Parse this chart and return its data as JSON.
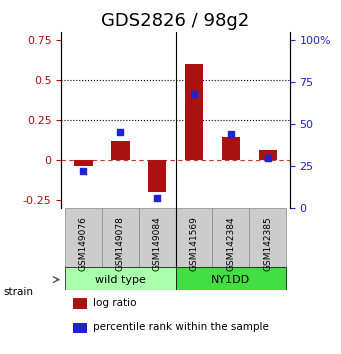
{
  "title": "GDS2826 / 98g2",
  "samples": [
    "GSM149076",
    "GSM149078",
    "GSM149084",
    "GSM141569",
    "GSM142384",
    "GSM142385"
  ],
  "log_ratio": [
    -0.04,
    0.12,
    -0.2,
    0.6,
    0.14,
    0.06
  ],
  "percentile_rank": [
    0.22,
    0.45,
    0.06,
    0.68,
    0.44,
    0.3
  ],
  "ylim_left": [
    -0.3,
    0.8
  ],
  "ylim_right": [
    0,
    105
  ],
  "yticks_left": [
    -0.25,
    0.0,
    0.25,
    0.5,
    0.75
  ],
  "ytick_labels_left": [
    "-0.25",
    "0",
    "0.25",
    "0.5",
    "0.75"
  ],
  "yticks_right": [
    0,
    25,
    50,
    75,
    100
  ],
  "ytick_labels_right": [
    "0",
    "25",
    "50",
    "75",
    "100%"
  ],
  "hlines": [
    0.25,
    0.5
  ],
  "bar_color": "#aa1111",
  "dot_color": "#2222cc",
  "zero_line_color": "#cc3333",
  "groups": [
    {
      "label": "wild type",
      "indices": [
        0,
        1,
        2
      ],
      "color": "#aaffaa"
    },
    {
      "label": "NY1DD",
      "indices": [
        3,
        4,
        5
      ],
      "color": "#44dd44"
    }
  ],
  "strain_label": "strain",
  "legend_items": [
    {
      "color": "#aa1111",
      "label": "log ratio"
    },
    {
      "color": "#2222cc",
      "label": "percentile rank within the sample"
    }
  ],
  "title_fontsize": 13,
  "tick_fontsize": 8,
  "label_fontsize": 9,
  "bar_width": 0.5
}
